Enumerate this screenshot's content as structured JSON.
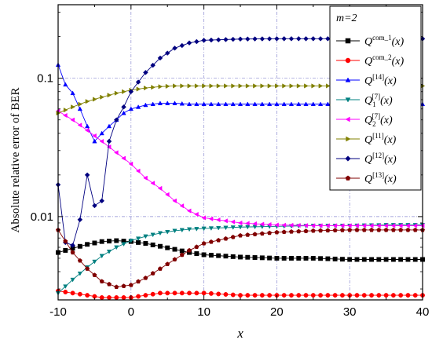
{
  "chart_data": {
    "type": "line",
    "xlabel": "x",
    "ylabel": "Absolute relative error of BER",
    "xlim": [
      -10,
      40
    ],
    "ylim": [
      0.0025,
      0.34
    ],
    "yscale": "log",
    "xticks": [
      "-10",
      "0",
      "10",
      "20",
      "30",
      "40"
    ],
    "xtick_values": [
      -10,
      0,
      10,
      20,
      30,
      40
    ],
    "yticks": [
      "0.01",
      "0.1"
    ],
    "ytick_values": [
      0.01,
      0.1
    ],
    "grid": true,
    "legend_title": "m=2",
    "legend_position": "top-right",
    "series": [
      {
        "key": "com1",
        "name": "Q^{com_1}(x)",
        "label_base": "Q",
        "label_sup": "com_1",
        "label_sub": "",
        "label_arg": "(x)",
        "color": "#000000",
        "marker": "square",
        "x": [
          -10,
          -8,
          -6,
          -4,
          -2,
          0,
          2,
          4,
          6,
          8,
          10,
          15,
          20,
          25,
          30,
          35,
          40
        ],
        "y": [
          0.0055,
          0.0059,
          0.0063,
          0.0066,
          0.0067,
          0.0066,
          0.0064,
          0.0061,
          0.0058,
          0.0055,
          0.0053,
          0.0051,
          0.005,
          0.005,
          0.0049,
          0.0049,
          0.0049
        ]
      },
      {
        "key": "com2",
        "name": "Q^{com_2}(x)",
        "label_base": "Q",
        "label_sup": "com_2",
        "label_sub": "",
        "label_arg": "(x)",
        "color": "#ff0000",
        "marker": "circle",
        "x": [
          -10,
          -8,
          -6,
          -4,
          -2,
          0,
          2,
          4,
          6,
          8,
          10,
          15,
          20,
          25,
          30,
          35,
          40
        ],
        "y": [
          0.0029,
          0.0028,
          0.0027,
          0.0026,
          0.0026,
          0.0026,
          0.0027,
          0.0028,
          0.0028,
          0.0028,
          0.0028,
          0.0027,
          0.0027,
          0.0027,
          0.0027,
          0.0027,
          0.0027
        ]
      },
      {
        "key": "q14",
        "name": "Q^{[14]}(x)",
        "label_base": "Q",
        "label_sup": "[14]",
        "label_sub": "",
        "label_arg": "(x)",
        "color": "#0000ff",
        "marker": "triangle-up",
        "x": [
          -10,
          -9,
          -8,
          -7,
          -6,
          -5,
          -4,
          -3,
          -2,
          -1,
          0,
          2,
          4,
          6,
          8,
          10,
          15,
          20,
          25,
          30,
          35,
          40
        ],
        "y": [
          0.125,
          0.09,
          0.078,
          0.06,
          0.045,
          0.035,
          0.04,
          0.045,
          0.05,
          0.056,
          0.06,
          0.064,
          0.066,
          0.066,
          0.065,
          0.065,
          0.065,
          0.065,
          0.065,
          0.065,
          0.065,
          0.065
        ]
      },
      {
        "key": "q7_1",
        "name": "Q_1^{[7]}(x)",
        "label_base": "Q",
        "label_sup": "[7]",
        "label_sub": "1",
        "label_arg": "(x)",
        "color": "#008080",
        "marker": "triangle-down",
        "x": [
          -10,
          -8,
          -6,
          -4,
          -2,
          0,
          2,
          4,
          6,
          8,
          10,
          15,
          20,
          25,
          30,
          35,
          40
        ],
        "y": [
          0.0028,
          0.0035,
          0.0043,
          0.0052,
          0.006,
          0.0067,
          0.0072,
          0.0076,
          0.0079,
          0.0081,
          0.0082,
          0.0084,
          0.0085,
          0.0086,
          0.0086,
          0.0087,
          0.0087
        ]
      },
      {
        "key": "q7_2",
        "name": "Q_2^{[7]}(x)",
        "label_base": "Q",
        "label_sup": "[7]",
        "label_sub": "2",
        "label_arg": "(x)",
        "color": "#ff00ff",
        "marker": "triangle-left",
        "x": [
          -10,
          -8,
          -6,
          -4,
          -2,
          0,
          2,
          4,
          6,
          8,
          10,
          15,
          20,
          25,
          30,
          35,
          40
        ],
        "y": [
          0.058,
          0.05,
          0.042,
          0.035,
          0.029,
          0.024,
          0.019,
          0.016,
          0.013,
          0.011,
          0.0098,
          0.009,
          0.0087,
          0.0086,
          0.0086,
          0.0086,
          0.0086
        ]
      },
      {
        "key": "q11",
        "name": "Q^{[11]}(x)",
        "label_base": "Q",
        "label_sup": "[11]",
        "label_sub": "",
        "label_arg": "(x)",
        "color": "#808000",
        "marker": "triangle-right",
        "x": [
          -10,
          -8,
          -6,
          -4,
          -2,
          0,
          2,
          4,
          6,
          8,
          10,
          15,
          20,
          25,
          30,
          35,
          40
        ],
        "y": [
          0.056,
          0.062,
          0.068,
          0.073,
          0.078,
          0.082,
          0.085,
          0.087,
          0.088,
          0.088,
          0.088,
          0.088,
          0.088,
          0.088,
          0.088,
          0.088,
          0.088
        ]
      },
      {
        "key": "q12",
        "name": "Q^{[12]}(x)",
        "label_base": "Q",
        "label_sup": "[12]",
        "label_sub": "",
        "label_arg": "(x)",
        "color": "#000080",
        "marker": "diamond",
        "x": [
          -10,
          -9,
          -8,
          -7,
          -6,
          -5,
          -4,
          -3,
          -2,
          -1,
          0,
          2,
          4,
          6,
          8,
          10,
          15,
          20,
          25,
          30,
          35,
          40
        ],
        "y": [
          0.017,
          0.0065,
          0.0062,
          0.0095,
          0.02,
          0.012,
          0.013,
          0.035,
          0.05,
          0.062,
          0.08,
          0.11,
          0.14,
          0.165,
          0.18,
          0.188,
          0.192,
          0.193,
          0.193,
          0.193,
          0.193,
          0.193
        ]
      },
      {
        "key": "q13",
        "name": "Q^{[13]}(x)",
        "label_base": "Q",
        "label_sup": "[13]",
        "label_sub": "",
        "label_arg": "(x)",
        "color": "#800000",
        "marker": "pentagon",
        "x": [
          -10,
          -8,
          -6,
          -4,
          -2,
          0,
          2,
          4,
          6,
          8,
          10,
          15,
          20,
          25,
          30,
          35,
          40
        ],
        "y": [
          0.008,
          0.0055,
          0.0042,
          0.0034,
          0.0031,
          0.0032,
          0.0036,
          0.0042,
          0.0049,
          0.0057,
          0.0064,
          0.0073,
          0.0077,
          0.0079,
          0.008,
          0.008,
          0.008
        ]
      }
    ]
  }
}
